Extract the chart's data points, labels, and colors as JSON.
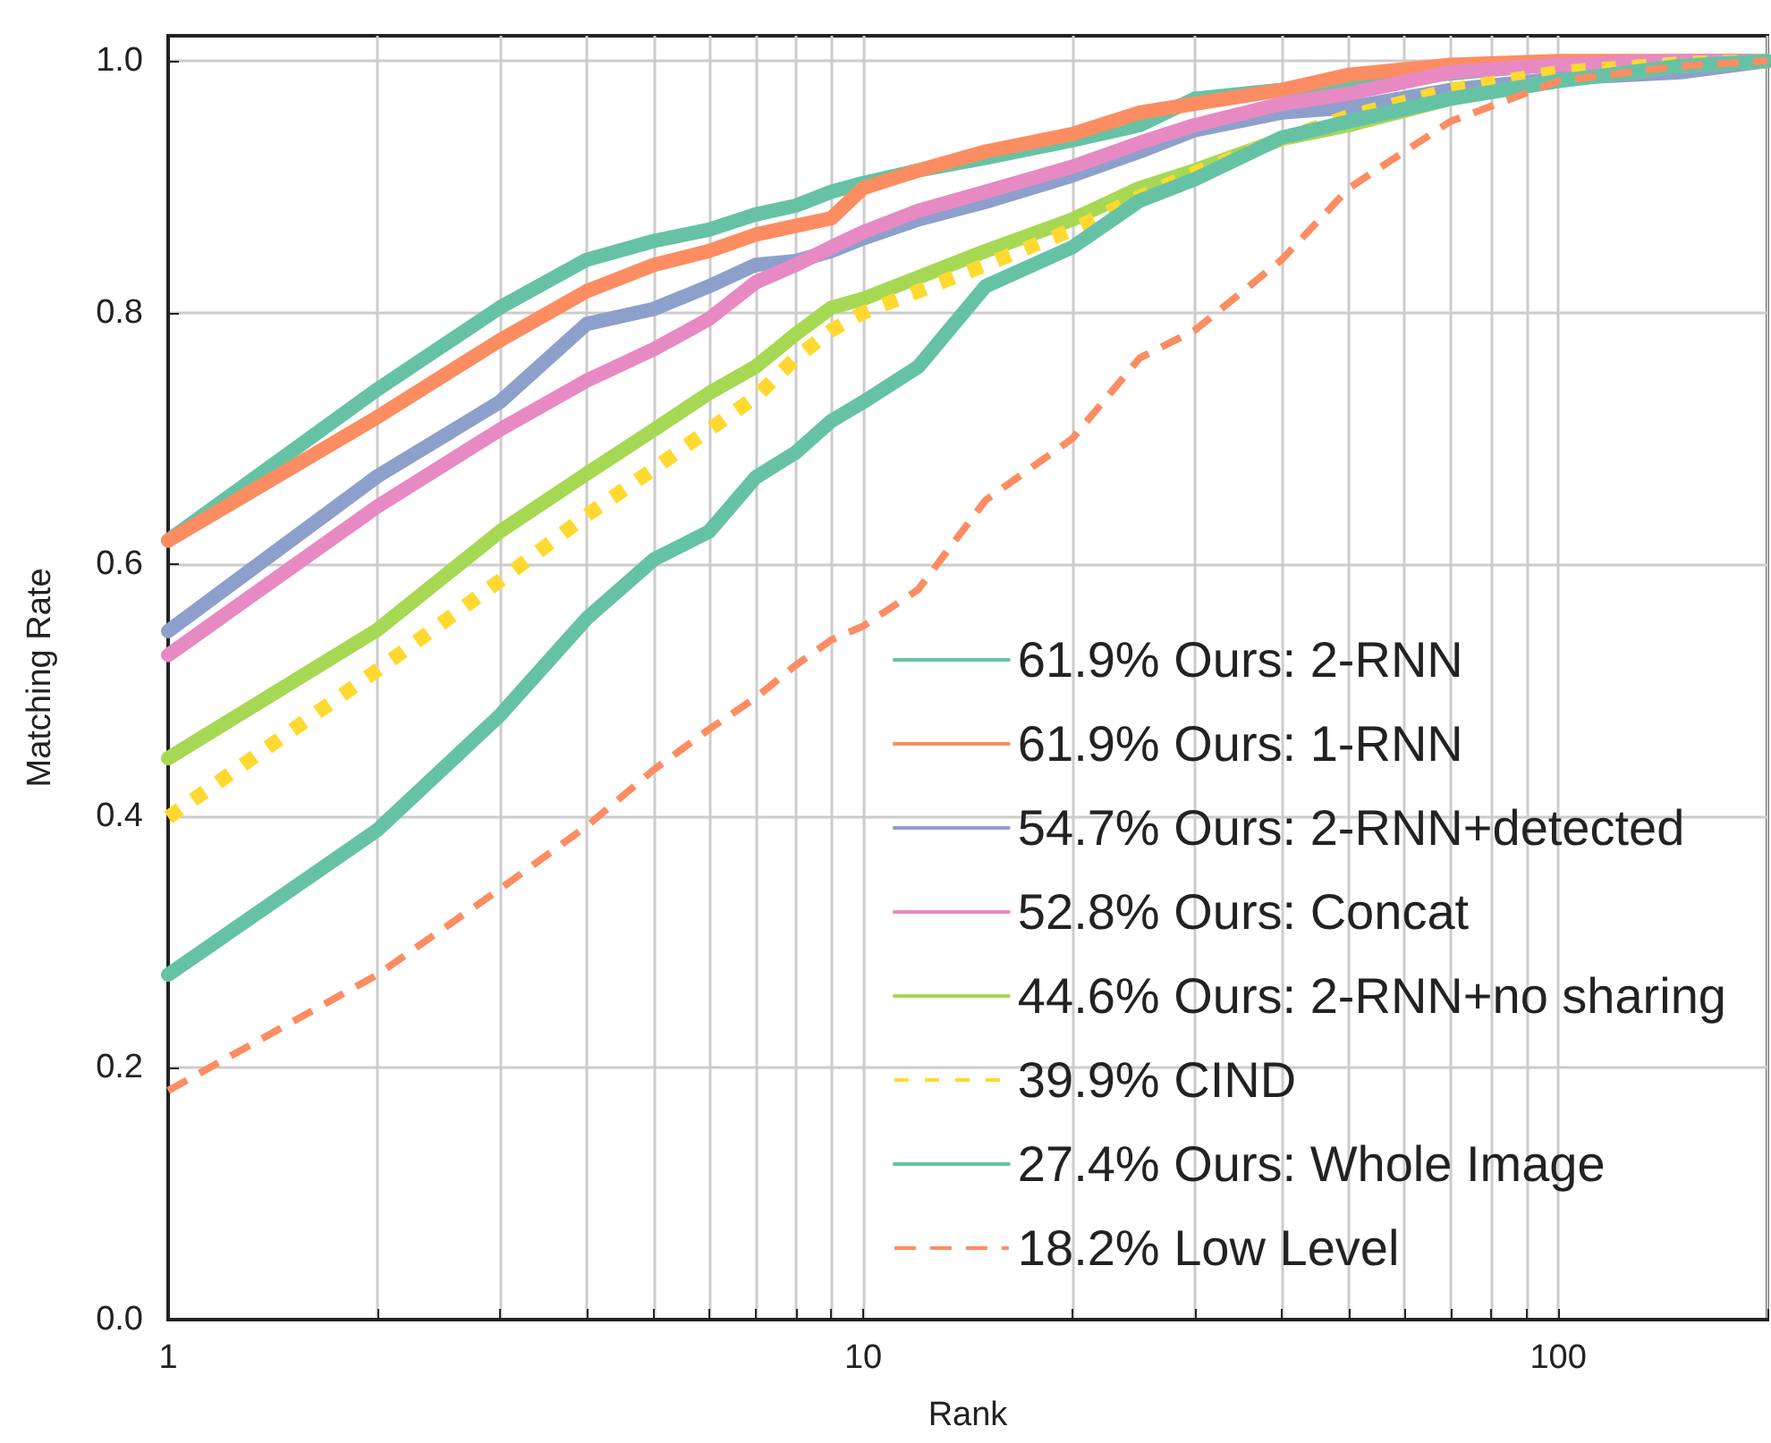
{
  "chart_data": {
    "type": "line",
    "xlabel": "Rank",
    "ylabel": "Matching Rate",
    "log": "x",
    "grid": true,
    "legend": "bottom right",
    "marker": "none",
    "xlim": [
      1,
      200
    ],
    "ylim": [
      0,
      1.02
    ],
    "xticks": [
      1,
      {
        "value": 2,
        "label": null
      },
      {
        "value": 3,
        "label": null
      },
      {
        "value": 4,
        "label": null
      },
      {
        "value": 5,
        "label": null
      },
      {
        "value": 6,
        "label": null
      },
      {
        "value": 7,
        "label": null
      },
      {
        "value": 8,
        "label": null
      },
      {
        "value": 9,
        "label": null
      },
      10,
      {
        "value": 20,
        "label": null
      },
      {
        "value": 30,
        "label": null
      },
      {
        "value": 40,
        "label": null
      },
      {
        "value": 50,
        "label": null
      },
      {
        "value": 60,
        "label": null
      },
      {
        "value": 70,
        "label": null
      },
      {
        "value": 80,
        "label": null
      },
      {
        "value": 90,
        "label": null
      },
      100,
      {
        "value": 200,
        "label": null
      }
    ],
    "yticks": [
      {
        "value": 0,
        "label": "0.0"
      },
      {
        "value": 0.2,
        "label": "0.2"
      },
      {
        "value": 0.4,
        "label": "0.4"
      },
      {
        "value": 0.6,
        "label": "0.6"
      },
      {
        "value": 0.8,
        "label": "0.8"
      },
      {
        "value": 1,
        "label": "1.0"
      }
    ],
    "x": [
      1,
      2,
      3,
      4,
      5,
      6,
      7,
      8,
      9,
      10,
      12,
      15,
      20,
      25,
      30,
      40,
      50,
      70,
      100,
      150,
      200
    ],
    "series": [
      {
        "name": "61.9% Ours: 2-RNN",
        "color": "#66c2a5",
        "line_style": "solid",
        "values": [
          0.619,
          0.739,
          0.804,
          0.842,
          0.857,
          0.866,
          0.878,
          0.885,
          0.896,
          0.903,
          0.913,
          0.923,
          0.937,
          0.949,
          0.97,
          0.977,
          0.984,
          0.99,
          0.998,
          1,
          1
        ]
      },
      {
        "name": "61.9% Ours: 1-RNN",
        "color": "#fc8d62",
        "line_style": "solid",
        "values": [
          0.619,
          0.717,
          0.778,
          0.817,
          0.838,
          0.849,
          0.862,
          0.869,
          0.875,
          0.899,
          0.913,
          0.928,
          0.942,
          0.959,
          0.966,
          0.977,
          0.989,
          0.997,
          1,
          1,
          1
        ]
      },
      {
        "name": "54.7% Ours: 2-RNN+detected",
        "color": "#8da0cb",
        "line_style": "solid",
        "values": [
          0.547,
          0.67,
          0.729,
          0.791,
          0.803,
          0.821,
          0.838,
          0.841,
          0.849,
          0.859,
          0.874,
          0.888,
          0.909,
          0.928,
          0.945,
          0.959,
          0.963,
          0.977,
          0.986,
          0.991,
          1
        ]
      },
      {
        "name": "52.8% Ours: Concat",
        "color": "#e78ac3",
        "line_style": "solid",
        "values": [
          0.528,
          0.646,
          0.707,
          0.746,
          0.771,
          0.795,
          0.824,
          0.838,
          0.852,
          0.864,
          0.881,
          0.896,
          0.916,
          0.935,
          0.949,
          0.966,
          0.974,
          0.991,
          0.997,
          1,
          1
        ]
      },
      {
        "name": "44.6% Ours: 2-RNN+no sharing",
        "color": "#a6d854",
        "line_style": "solid",
        "values": [
          0.446,
          0.548,
          0.626,
          0.672,
          0.707,
          0.736,
          0.757,
          0.783,
          0.804,
          0.811,
          0.828,
          0.849,
          0.874,
          0.899,
          0.913,
          0.938,
          0.949,
          0.97,
          0.984,
          0.996,
          1
        ]
      },
      {
        "name": "39.9% CIND",
        "color": "#ffd92f",
        "line_style": "dotted",
        "values": [
          0.399,
          0.516,
          0.587,
          0.639,
          0.676,
          0.707,
          0.733,
          0.764,
          0.786,
          0.8,
          0.817,
          0.838,
          0.866,
          0.892,
          0.911,
          0.938,
          0.956,
          0.977,
          0.991,
          0.998,
          1
        ]
      },
      {
        "name": "27.4% Ours: Whole Image",
        "color": "#66c2a5",
        "line_style": "solid",
        "values": [
          0.274,
          0.389,
          0.48,
          0.557,
          0.604,
          0.626,
          0.669,
          0.689,
          0.714,
          0.729,
          0.757,
          0.821,
          0.852,
          0.889,
          0.906,
          0.939,
          0.952,
          0.97,
          0.984,
          0.996,
          1
        ]
      },
      {
        "name": "18.2% Low Level",
        "color": "#fc8d62",
        "line_style": "dashed",
        "values": [
          0.182,
          0.274,
          0.342,
          0.392,
          0.437,
          0.469,
          0.494,
          0.52,
          0.54,
          0.551,
          0.58,
          0.651,
          0.7,
          0.764,
          0.786,
          0.842,
          0.899,
          0.952,
          0.984,
          0.996,
          1
        ]
      }
    ]
  }
}
